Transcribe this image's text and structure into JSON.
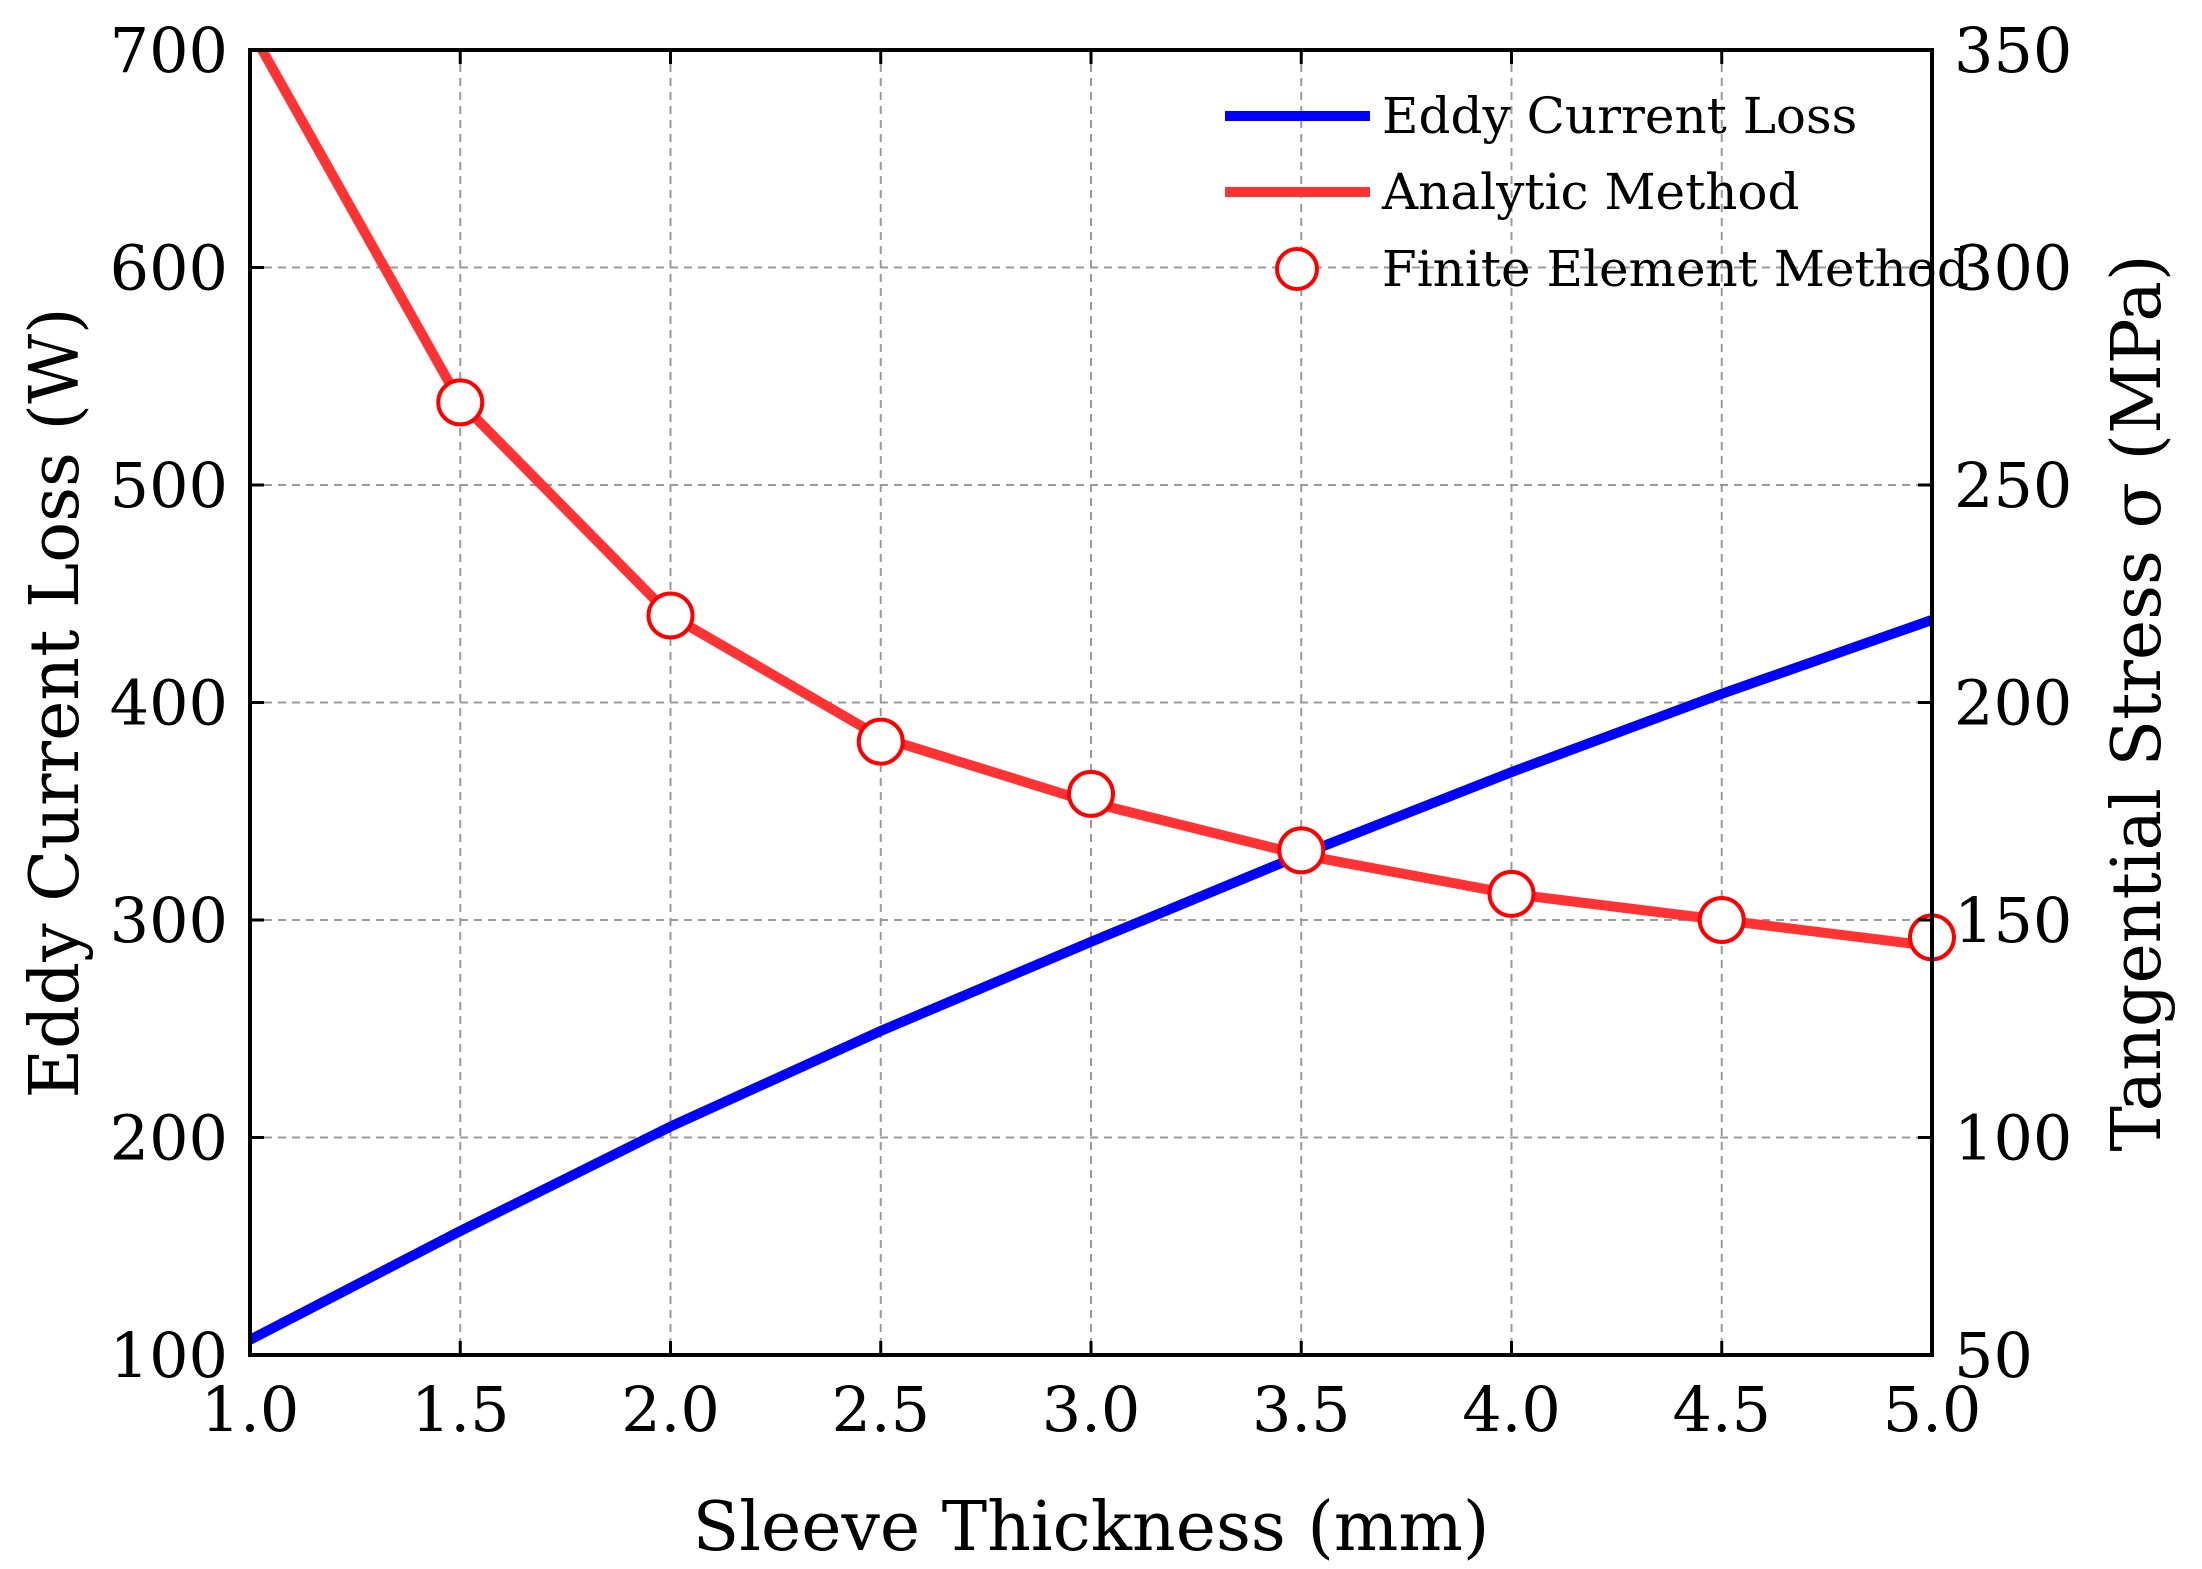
{
  "chart_data": {
    "type": "line",
    "title": "",
    "xlabel": "Sleeve Thickness (mm)",
    "ylabel": "Eddy Current Loss (W)",
    "y2label": "Tangential Stress σ (MPa)",
    "xlim": [
      1.0,
      5.0
    ],
    "ylim": [
      100,
      700
    ],
    "y2lim": [
      50,
      350
    ],
    "x_ticks": [
      "1.0",
      "1.5",
      "2.0",
      "2.5",
      "3.0",
      "3.5",
      "4.0",
      "4.5",
      "5.0"
    ],
    "y_ticks": [
      "100",
      "200",
      "300",
      "400",
      "500",
      "600",
      "700"
    ],
    "y2_ticks": [
      "50",
      "100",
      "150",
      "200",
      "250",
      "300",
      "350"
    ],
    "grid": true,
    "legend_position": "top-right",
    "series": [
      {
        "name": "Eddy Current Loss",
        "axis": "left",
        "style": "line",
        "color": "#0000ff",
        "x": [
          1.0,
          1.5,
          2.0,
          2.5,
          3.0,
          3.5,
          4.0,
          4.5,
          5.0
        ],
        "values": [
          107,
          157,
          205,
          249,
          290,
          330,
          368,
          404,
          438
        ]
      },
      {
        "name": "Analytic Method",
        "axis": "right",
        "style": "line",
        "color": "#ff3333",
        "x": [
          1.0,
          1.5,
          2.0,
          2.5,
          3.0,
          3.5,
          4.0,
          4.5,
          5.0
        ],
        "values": [
          355,
          269,
          220,
          192,
          177,
          165,
          156,
          150,
          144
        ]
      },
      {
        "name": "Finite Element Method",
        "axis": "right",
        "style": "marker",
        "color": "#ff0000",
        "x": [
          1.5,
          2.0,
          2.5,
          3.0,
          3.5,
          4.0,
          4.5,
          5.0
        ],
        "values": [
          269,
          220,
          191,
          179,
          166,
          156,
          150,
          146
        ]
      }
    ]
  }
}
